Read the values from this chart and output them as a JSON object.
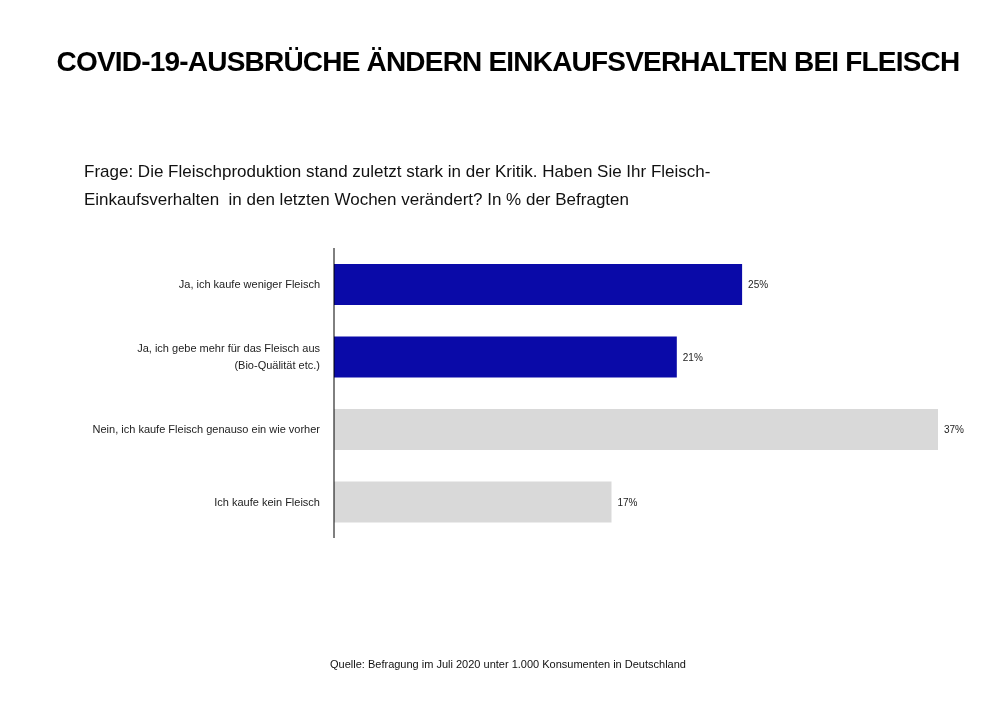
{
  "chart_data": {
    "type": "bar",
    "orientation": "horizontal",
    "title": "COVID-19-AUSBRÜCHE ÄNDERN EINKAUFSVERHALTEN BEI FLEISCH",
    "subtitle": "Frage: Die Fleischproduktion stand zuletzt stark in der Kritik. Haben Sie Ihr Fleisch-\nEinkaufsverhalten  in den letzten Wochen verändert? In % der Befragten",
    "categories": [
      "Ja, ich kaufe weniger Fleisch",
      "Ja, ich gebe mehr für das Fleisch aus\n(Bio-Quälität etc.)",
      "Nein, ich kaufe Fleisch genauso ein wie vorher",
      "Ich kaufe kein Fleisch"
    ],
    "values": [
      25,
      21,
      37,
      17
    ],
    "colors": [
      "#0a0aa8",
      "#0a0aa8",
      "#d9d9d9",
      "#d9d9d9"
    ],
    "value_labels": [
      "25%",
      "21%",
      "37%",
      "17%"
    ],
    "annotations": [
      "Quelle: Befragung im Juli 2020 unter 1.000 Konsumenten in Deutschland"
    ]
  }
}
